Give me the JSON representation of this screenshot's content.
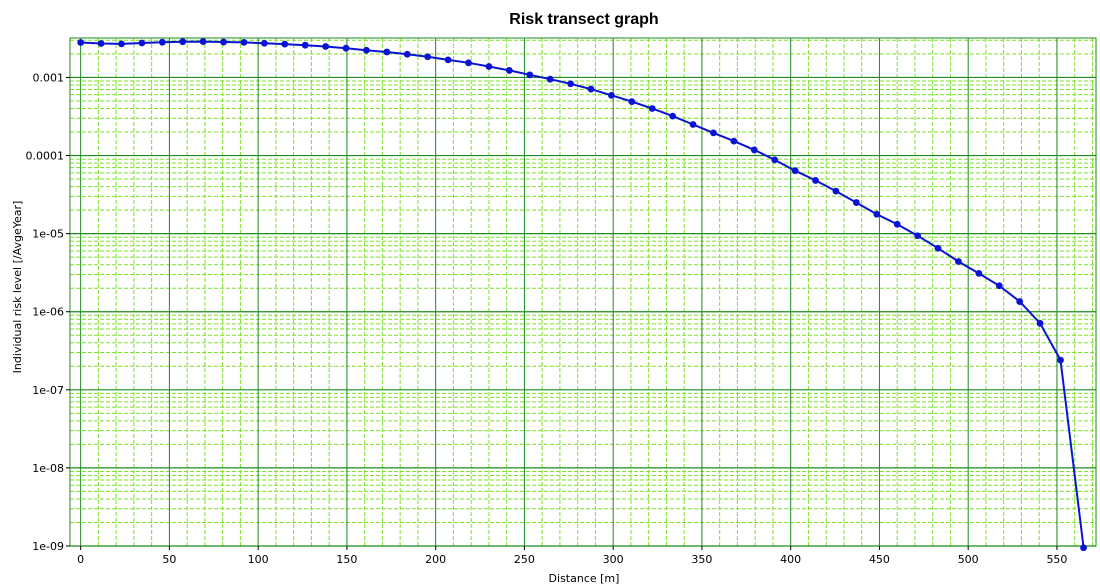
{
  "chart_data": {
    "type": "line",
    "title": "Risk transect graph",
    "xlabel": "Distance [m]",
    "ylabel": "Individual risk level [/AvgeYear]",
    "xlim": [
      -6,
      572
    ],
    "ylim": [
      1e-09,
      0.0032
    ],
    "y_scale": "log",
    "grid": true,
    "x_ticks": [
      0,
      50,
      100,
      150,
      200,
      250,
      300,
      350,
      400,
      450,
      500,
      550
    ],
    "y_ticks": [
      {
        "value": 0.001,
        "label": "0.001"
      },
      {
        "value": 0.0001,
        "label": "0.0001"
      },
      {
        "value": 1e-05,
        "label": "1e-05"
      },
      {
        "value": 1e-06,
        "label": "1e-06"
      },
      {
        "value": 1e-07,
        "label": "1e-07"
      },
      {
        "value": 1e-08,
        "label": "1e-08"
      },
      {
        "value": 1e-09,
        "label": "1e-09"
      }
    ],
    "colors": {
      "series": "#0a14d2",
      "grid_major": "#1e8a1e",
      "grid_minor": "#7de02a"
    },
    "series": [
      {
        "x": [
          0,
          11.5,
          23,
          34.5,
          46,
          57.5,
          69,
          80.5,
          92,
          103.5,
          115,
          126.5,
          138,
          149.5,
          161,
          172.5,
          184,
          195.5,
          207,
          218.5,
          230,
          241.5,
          253,
          264.5,
          276,
          287.5,
          299,
          310.5,
          322,
          333.5,
          345,
          356.5,
          368,
          379.5,
          391,
          402.5,
          414,
          425.5,
          437,
          448.5,
          460,
          471.5,
          483,
          494.5,
          506,
          517.5,
          529,
          540.5,
          552,
          565
        ],
        "y": [
          0.0028,
          0.00272,
          0.00269,
          0.00276,
          0.00283,
          0.00287,
          0.00288,
          0.00284,
          0.00281,
          0.00274,
          0.00267,
          0.00259,
          0.00249,
          0.00237,
          0.00223,
          0.00212,
          0.00198,
          0.00184,
          0.00168,
          0.00154,
          0.00138,
          0.00123,
          0.00108,
          0.00095,
          0.00083,
          0.00071,
          0.00059,
          0.00049,
          0.0004,
          0.00032,
          0.00025,
          0.000195,
          0.000153,
          0.000118,
          8.8e-05,
          6.4e-05,
          4.8e-05,
          3.5e-05,
          2.5e-05,
          1.77e-05,
          1.32e-05,
          9.4e-06,
          6.5e-06,
          4.4e-06,
          3.1e-06,
          2.15e-06,
          1.35e-06,
          7.1e-07,
          2.4e-07,
          9.5e-10
        ]
      }
    ]
  }
}
